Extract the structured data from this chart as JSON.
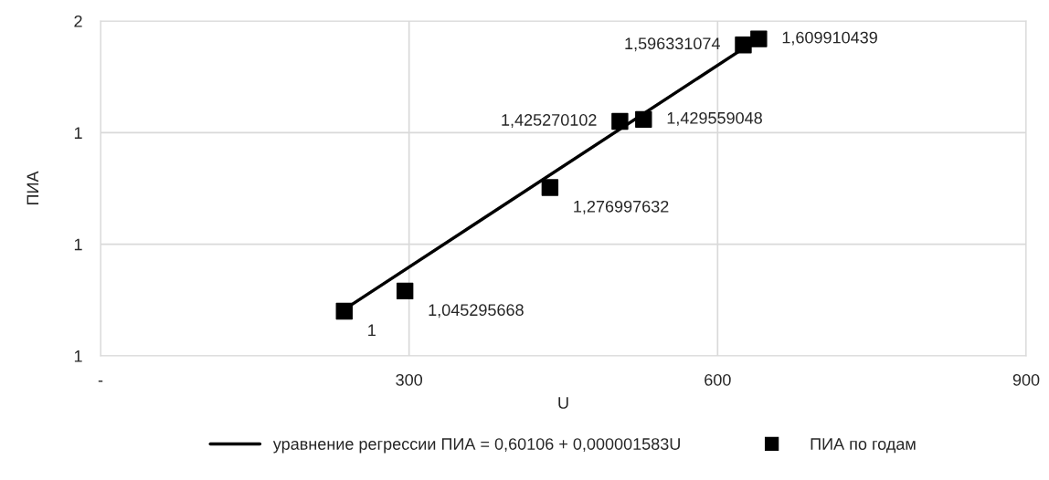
{
  "chart_data": {
    "type": "scatter",
    "xlabel": "U",
    "ylabel": "ПИА",
    "xlim": [
      0,
      900
    ],
    "xticks": [
      {
        "value": 0,
        "label": "-"
      },
      300,
      600,
      900
    ],
    "ylim": [
      0.9,
      1.65
    ],
    "yticks": [
      {
        "value": 0.9,
        "label": "1"
      },
      {
        "value": 1.15,
        "label": "1"
      },
      {
        "value": 1.4,
        "label": "1"
      },
      {
        "value": 1.65,
        "label": "2"
      }
    ],
    "grid": true,
    "legend": "bottom",
    "series": [
      {
        "type": "line",
        "name": "уравнение регрессии ПИА = 0,60106 + 0,000001583U",
        "color": "#000000",
        "x": [
          237,
          624
        ],
        "values": [
          1.004,
          1.587
        ]
      },
      {
        "name": "ПИА по годам",
        "color": "#000000",
        "marker": "square",
        "x": [
          237,
          296,
          437,
          505,
          528,
          625,
          640
        ],
        "values": [
          1,
          1.045295668,
          1.276997632,
          1.425270102,
          1.429559048,
          1.596331074,
          1.609910439
        ],
        "value_labels": [
          "1",
          "1,045295668",
          "1,276997632",
          "1,425270102",
          "1,429559048",
          "1,596331074",
          "1,609910439"
        ]
      }
    ]
  }
}
